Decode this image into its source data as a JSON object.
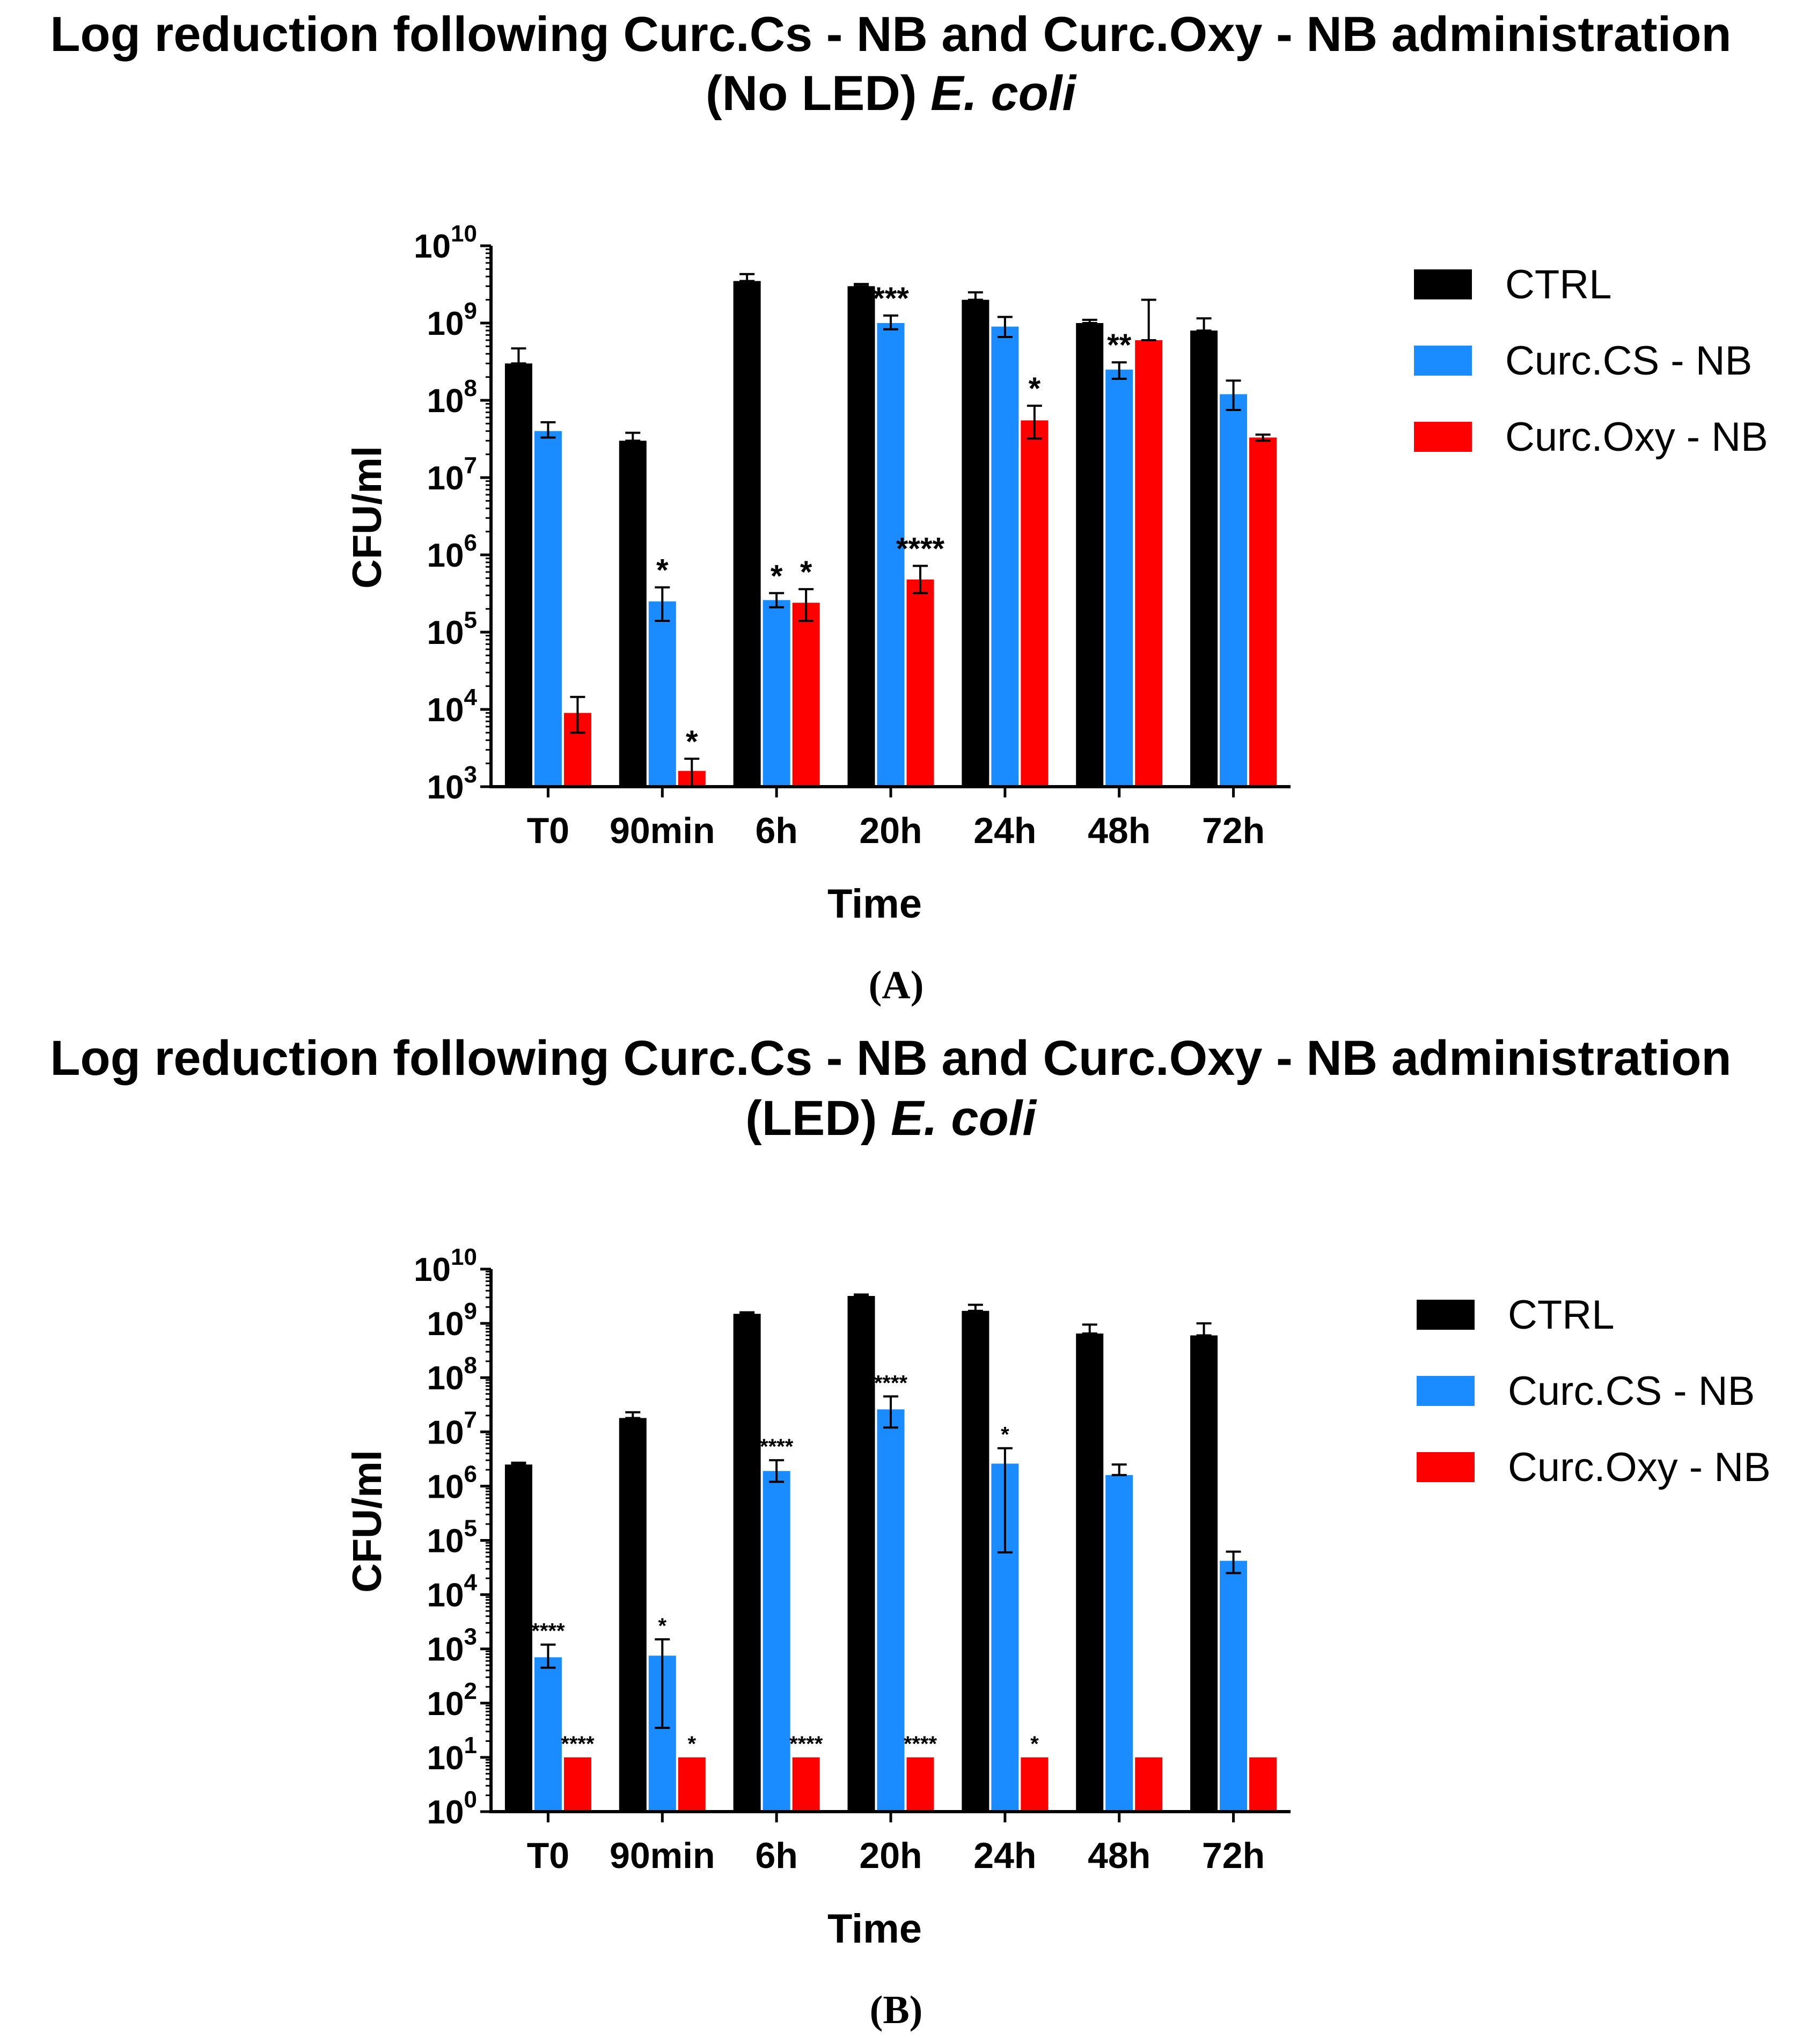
{
  "colors": {
    "ctrl": "#000000",
    "cs": "#1a8cff",
    "oxy": "#ff0000",
    "axis": "#000000",
    "text": "#000000"
  },
  "chart_data": [
    {
      "panel": "A",
      "type": "bar",
      "title_line1": "Log reduction following Curc.Cs - NB and Curc.Oxy - NB administration",
      "title_line2_prefix": "(No LED) ",
      "title_line2_italic": "E. coli",
      "panel_label": "(A)",
      "xlabel": "Time",
      "ylabel": "CFU/ml",
      "yscale": "log",
      "ylim_exp": [
        3,
        10
      ],
      "yticks": [
        {
          "base": "10",
          "exp": "3"
        },
        {
          "base": "10",
          "exp": "4"
        },
        {
          "base": "10",
          "exp": "5"
        },
        {
          "base": "10",
          "exp": "6"
        },
        {
          "base": "10",
          "exp": "7"
        },
        {
          "base": "10",
          "exp": "8"
        },
        {
          "base": "10",
          "exp": "9"
        },
        {
          "base": "10",
          "exp": "10"
        }
      ],
      "categories": [
        "T0",
        "90min",
        "6h",
        "20h",
        "24h",
        "48h",
        "72h"
      ],
      "legend": [
        "CTRL",
        "Curc.CS - NB",
        "Curc.Oxy - NB"
      ],
      "series": [
        {
          "name": "CTRL",
          "color_key": "ctrl",
          "values": [
            300000000,
            30000000,
            3500000000,
            3000000000,
            2000000000,
            1000000000,
            800000000
          ],
          "err_up": [
            470000000,
            38000000,
            4300000000,
            3200000000,
            2500000000,
            1100000000,
            1150000000
          ],
          "err_low": [
            300000000,
            30000000,
            3500000000,
            3000000000,
            2000000000,
            1000000000,
            800000000
          ],
          "sig": [
            "",
            "",
            "",
            "",
            "",
            "",
            ""
          ]
        },
        {
          "name": "Curc.CS - NB",
          "color_key": "cs",
          "values": [
            40000000,
            250000,
            260000,
            1000000000,
            900000000,
            250000000,
            120000000
          ],
          "err_up": [
            52000000,
            380000,
            320000,
            1250000000,
            1200000000,
            310000000,
            180000000
          ],
          "err_low": [
            33000000,
            140000,
            210000,
            830000000,
            660000000,
            190000000,
            75000000
          ],
          "sig": [
            "",
            "*",
            "*",
            "***",
            "",
            "**",
            ""
          ]
        },
        {
          "name": "Curc.Oxy - NB",
          "color_key": "oxy",
          "values": [
            9000,
            1600,
            240000,
            480000,
            55000000,
            600000000,
            33000000
          ],
          "err_up": [
            14500,
            2300,
            360000,
            720000,
            85000000,
            2000000000,
            36000000
          ],
          "err_low": [
            5000,
            1000,
            140000,
            320000,
            32000000,
            600000000,
            30000000
          ],
          "sig": [
            "",
            "*",
            "*",
            "****",
            "*",
            "",
            ""
          ]
        }
      ]
    },
    {
      "panel": "B",
      "type": "bar",
      "title_line1": "Log reduction following Curc.Cs - NB and Curc.Oxy - NB administration",
      "title_line2_prefix": "(LED) ",
      "title_line2_italic": "E. coli",
      "panel_label": "(B)",
      "xlabel": "Time",
      "ylabel": "CFU/ml",
      "yscale": "log",
      "ylim_exp": [
        0,
        10
      ],
      "yticks": [
        {
          "base": "10",
          "exp": "0"
        },
        {
          "base": "10",
          "exp": "1"
        },
        {
          "base": "10",
          "exp": "2"
        },
        {
          "base": "10",
          "exp": "3"
        },
        {
          "base": "10",
          "exp": "4"
        },
        {
          "base": "10",
          "exp": "5"
        },
        {
          "base": "10",
          "exp": "6"
        },
        {
          "base": "10",
          "exp": "7"
        },
        {
          "base": "10",
          "exp": "8"
        },
        {
          "base": "10",
          "exp": "9"
        },
        {
          "base": "10",
          "exp": "10"
        }
      ],
      "categories": [
        "T0",
        "90min",
        "6h",
        "20h",
        "24h",
        "48h",
        "72h"
      ],
      "legend": [
        "CTRL",
        "Curc.CS - NB",
        "Curc.Oxy - NB"
      ],
      "series": [
        {
          "name": "CTRL",
          "color_key": "ctrl",
          "values": [
            2500000,
            18000000,
            1500000000,
            3200000000,
            1700000000,
            650000000,
            600000000
          ],
          "err_up": [
            2700000,
            23000000,
            1600000000,
            3400000000,
            2200000000,
            950000000,
            1000000000
          ],
          "err_low": [
            2500000,
            18000000,
            1500000000,
            3200000000,
            1700000000,
            650000000,
            600000000
          ],
          "sig": [
            "",
            "",
            "",
            "",
            "",
            "",
            ""
          ]
        },
        {
          "name": "Curc.CS - NB",
          "color_key": "cs",
          "values": [
            700,
            750,
            1900000,
            26000000,
            2600000,
            1600000,
            42000
          ],
          "err_up": [
            1200,
            1500,
            3000000,
            45000000,
            5000000,
            2500000,
            62000
          ],
          "err_low": [
            450,
            35,
            1200000,
            12000000,
            60000,
            1600000,
            25000
          ],
          "sig": [
            "****",
            "*",
            "****",
            "****",
            "*",
            "",
            ""
          ]
        },
        {
          "name": "Curc.Oxy - NB",
          "color_key": "oxy",
          "values": [
            10,
            10,
            10,
            10,
            10,
            10,
            10
          ],
          "err_up": [
            10,
            10,
            10,
            10,
            10,
            10,
            10
          ],
          "err_low": [
            10,
            10,
            10,
            10,
            10,
            10,
            10
          ],
          "sig": [
            "****",
            "*",
            "****",
            "****",
            "*",
            "",
            ""
          ]
        }
      ]
    }
  ]
}
